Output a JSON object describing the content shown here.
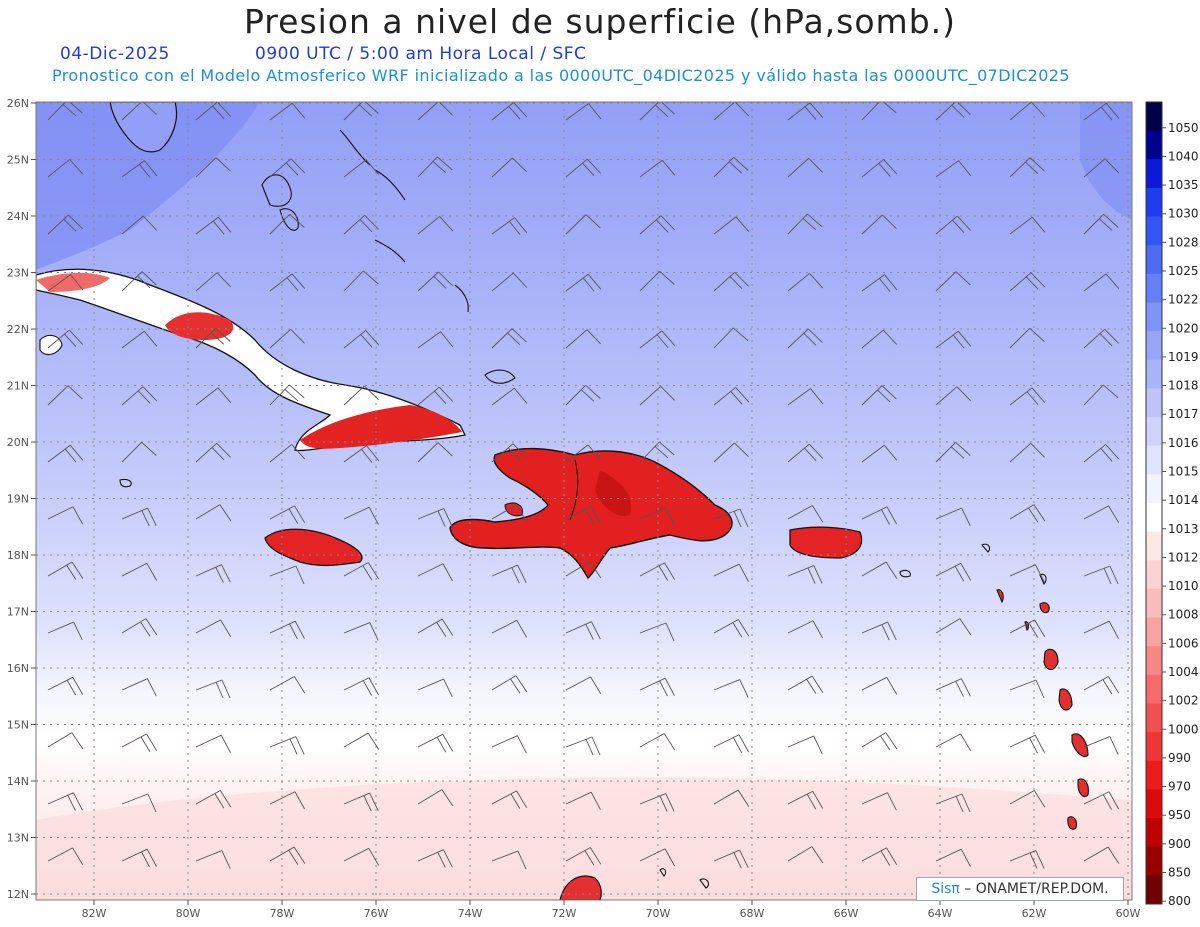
{
  "header": {
    "title": "Presion a nivel de superficie (hPa,somb.)",
    "date": "04-Dic-2025",
    "time_line": "0900 UTC / 5:00 am Hora Local / SFC",
    "model_line": "Pronostico con el Modelo Atmosferico WRF inicializado a las 0000UTC_04DIC2025 y válido hasta las  0000UTC_07DIC2025"
  },
  "axes": {
    "lat_labels": [
      "26N",
      "25N",
      "24N",
      "23N",
      "22N",
      "21N",
      "20N",
      "19N",
      "18N",
      "17N",
      "16N",
      "15N",
      "14N",
      "13N",
      "12N"
    ],
    "lon_labels": [
      "82W",
      "80W",
      "78W",
      "76W",
      "74W",
      "72W",
      "70W",
      "68W",
      "66W",
      "64W",
      "62W",
      "60W"
    ]
  },
  "colorbar": {
    "levels": [
      "1050",
      "1040",
      "1035",
      "1030",
      "1028",
      "1025",
      "1022",
      "1020",
      "1019",
      "1018",
      "1017",
      "1016",
      "1015",
      "1014",
      "1013",
      "1012",
      "1010",
      "1008",
      "1006",
      "1004",
      "1002",
      "1000",
      "990",
      "970",
      "950",
      "900",
      "850",
      "800"
    ],
    "colors": [
      "#00004a",
      "#000090",
      "#0a1ad8",
      "#1f3cf0",
      "#3456f5",
      "#4d6cf6",
      "#6680f8",
      "#7f94f8",
      "#98a6fa",
      "#a9b5fa",
      "#bcc4fb",
      "#cfd4fc",
      "#e1e4fd",
      "#f2f3fe",
      "#ffffff",
      "#fde8e8",
      "#fcd2d2",
      "#fbbcbc",
      "#f9a2a2",
      "#f78787",
      "#f56b6b",
      "#f25050",
      "#ef3535",
      "#ec1c1c",
      "#dc0a0a",
      "#c00000",
      "#980000",
      "#700000"
    ]
  },
  "credit": {
    "sis": "Sisπ",
    "rest": " – ONAMET/REP.DOM."
  },
  "colors": {
    "land_low": "#e02020",
    "ocean_high": "#9fa9f7",
    "ocean_mid": "#c6ccfa",
    "ocean_low": "#fde9ea"
  }
}
